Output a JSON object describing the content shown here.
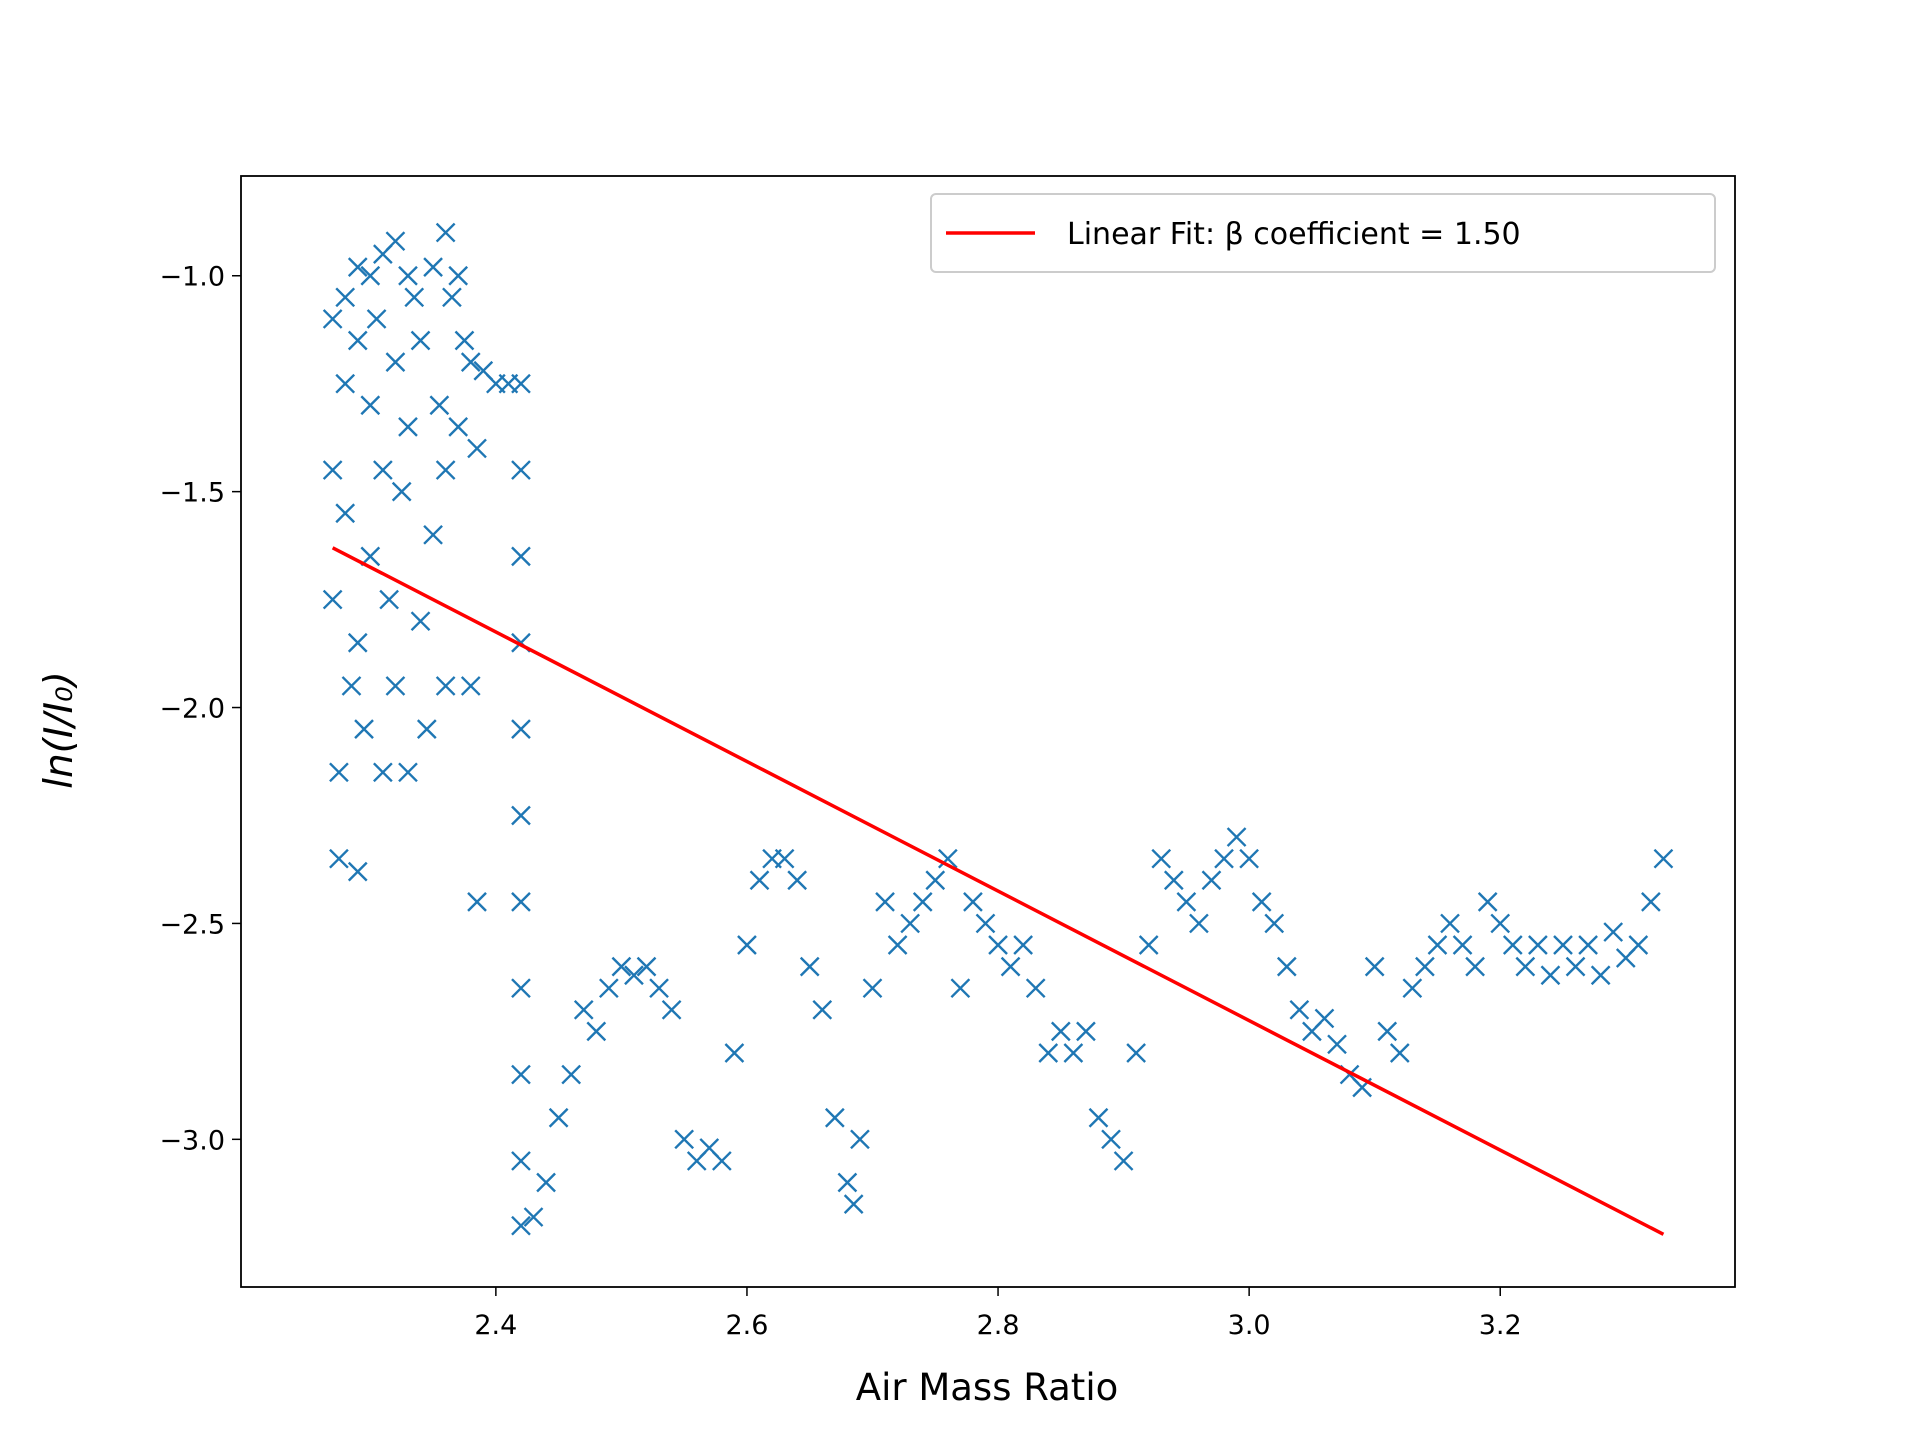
{
  "chart_data": {
    "type": "scatter",
    "x_label": "Air Mass Ratio",
    "y_label": "ln(I/I₀)",
    "xlim": [
      2.197,
      3.387
    ],
    "ylim": [
      -3.342,
      -0.769
    ],
    "xticks": [
      2.4,
      2.6,
      2.8,
      {
        "value": 3,
        "label": "3.0"
      },
      3.2
    ],
    "yticks": [
      {
        "value": -1,
        "label": "−1.0"
      },
      {
        "value": -1.5,
        "label": "−1.5"
      },
      {
        "value": -2,
        "label": "−2.0"
      },
      {
        "value": -2.5,
        "label": "−2.5"
      },
      {
        "value": -3,
        "label": "−3.0"
      }
    ],
    "grid": false,
    "legend_position": "upper right",
    "series": [
      {
        "type": "scatter",
        "marker": "x",
        "color": "#1f77b4",
        "x": [
          2.27,
          2.27,
          2.27,
          2.275,
          2.275,
          2.28,
          2.28,
          2.28,
          2.285,
          2.29,
          2.29,
          2.29,
          2.29,
          2.295,
          2.3,
          2.3,
          2.3,
          2.305,
          2.31,
          2.31,
          2.31,
          2.315,
          2.32,
          2.32,
          2.32,
          2.325,
          2.33,
          2.33,
          2.33,
          2.335,
          2.34,
          2.34,
          2.345,
          2.35,
          2.35,
          2.355,
          2.36,
          2.36,
          2.36,
          2.365,
          2.37,
          2.37,
          2.375,
          2.38,
          2.38,
          2.385,
          2.385,
          2.39,
          2.4,
          2.41,
          2.42,
          2.42,
          2.42,
          2.42,
          2.42,
          2.42,
          2.42,
          2.42,
          2.42,
          2.42,
          2.42,
          2.43,
          2.44,
          2.45,
          2.46,
          2.47,
          2.48,
          2.49,
          2.5,
          2.51,
          2.52,
          2.53,
          2.54,
          2.55,
          2.56,
          2.57,
          2.58,
          2.59,
          2.6,
          2.61,
          2.62,
          2.63,
          2.64,
          2.65,
          2.66,
          2.67,
          2.68,
          2.685,
          2.69,
          2.7,
          2.71,
          2.72,
          2.73,
          2.74,
          2.75,
          2.76,
          2.77,
          2.78,
          2.79,
          2.8,
          2.81,
          2.82,
          2.83,
          2.84,
          2.85,
          2.86,
          2.87,
          2.88,
          2.89,
          2.9,
          2.91,
          2.92,
          2.93,
          2.94,
          2.95,
          2.96,
          2.97,
          2.98,
          2.99,
          3.0,
          3.01,
          3.02,
          3.03,
          3.04,
          3.05,
          3.06,
          3.07,
          3.08,
          3.09,
          3.1,
          3.11,
          3.12,
          3.13,
          3.14,
          3.15,
          3.16,
          3.17,
          3.18,
          3.19,
          3.2,
          3.21,
          3.22,
          3.23,
          3.24,
          3.25,
          3.26,
          3.27,
          3.28,
          3.29,
          3.3,
          3.31,
          3.32,
          3.33
        ],
        "values": [
          -1.1,
          -1.45,
          -1.75,
          -2.15,
          -2.35,
          -1.05,
          -1.25,
          -1.55,
          -1.95,
          -0.98,
          -1.15,
          -1.85,
          -2.38,
          -2.05,
          -1.0,
          -1.3,
          -1.65,
          -1.1,
          -0.95,
          -1.45,
          -2.15,
          -1.75,
          -0.92,
          -1.2,
          -1.95,
          -1.5,
          -1.0,
          -1.35,
          -2.15,
          -1.05,
          -1.15,
          -1.8,
          -2.05,
          -0.98,
          -1.6,
          -1.3,
          -0.9,
          -1.45,
          -1.95,
          -1.05,
          -1.0,
          -1.35,
          -1.15,
          -1.2,
          -1.95,
          -2.45,
          -1.4,
          -1.22,
          -1.25,
          -1.25,
          -1.25,
          -1.45,
          -1.65,
          -1.85,
          -2.05,
          -2.25,
          -2.45,
          -2.65,
          -2.85,
          -3.05,
          -3.2,
          -3.18,
          -3.1,
          -2.95,
          -2.85,
          -2.7,
          -2.75,
          -2.65,
          -2.6,
          -2.62,
          -2.6,
          -2.65,
          -2.7,
          -3.0,
          -3.05,
          -3.02,
          -3.05,
          -2.8,
          -2.55,
          -2.4,
          -2.35,
          -2.35,
          -2.4,
          -2.6,
          -2.7,
          -2.95,
          -3.1,
          -3.15,
          -3.0,
          -2.65,
          -2.45,
          -2.55,
          -2.5,
          -2.45,
          -2.4,
          -2.35,
          -2.65,
          -2.45,
          -2.5,
          -2.55,
          -2.6,
          -2.55,
          -2.65,
          -2.8,
          -2.75,
          -2.8,
          -2.75,
          -2.95,
          -3.0,
          -3.05,
          -2.8,
          -2.55,
          -2.35,
          -2.4,
          -2.45,
          -2.5,
          -2.4,
          -2.35,
          -2.3,
          -2.35,
          -2.45,
          -2.5,
          -2.6,
          -2.7,
          -2.75,
          -2.72,
          -2.78,
          -2.85,
          -2.88,
          -2.6,
          -2.75,
          -2.8,
          -2.65,
          -2.6,
          -2.55,
          -2.5,
          -2.55,
          -2.6,
          -2.45,
          -2.5,
          -2.55,
          -2.6,
          -2.55,
          -2.62,
          -2.55,
          -2.6,
          -2.55,
          -2.62,
          -2.52,
          -2.58,
          -2.55,
          -2.45,
          -2.35
        ]
      },
      {
        "type": "line",
        "name": "Linear Fit: β coefficient = 1.50",
        "color": "#ff0000",
        "x": [
          2.27,
          3.33
        ],
        "values": [
          -1.63,
          -3.22
        ]
      }
    ]
  }
}
